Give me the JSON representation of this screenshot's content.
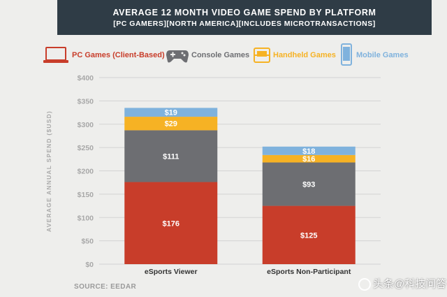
{
  "title": "AVERAGE 12 MONTH VIDEO GAME SPEND BY PLATFORM",
  "subtitle": "[PC GAMERS][NORTH AMERICA][INCLUDES MICROTRANSACTIONS]",
  "legend": [
    {
      "label": "PC Games (Client-Based)",
      "color": "#c83d2a",
      "icon": "laptop-icon"
    },
    {
      "label": "Console Games",
      "color": "#6d6e72",
      "icon": "gamepad-icon"
    },
    {
      "label": "Handheld Games",
      "color": "#f6b224",
      "icon": "handheld-icon"
    },
    {
      "label": "Mobile Games",
      "color": "#7fb2dd",
      "icon": "smartphone-icon"
    }
  ],
  "source": "SOURCE: EEDAR",
  "watermark": "头条@科技问答",
  "chart_data": {
    "type": "bar",
    "stacked": true,
    "categories": [
      "eSports Viewer",
      "eSports Non-Participant"
    ],
    "series": [
      {
        "name": "PC Games (Client-Based)",
        "color": "#c83d2a",
        "values": [
          176,
          125
        ],
        "labels": [
          "$176",
          "$125"
        ]
      },
      {
        "name": "Console Games",
        "color": "#6d6e72",
        "values": [
          111,
          93
        ],
        "labels": [
          "$111",
          "$93"
        ]
      },
      {
        "name": "Handheld Games",
        "color": "#f6b224",
        "values": [
          29,
          16
        ],
        "labels": [
          "$29",
          "$16"
        ]
      },
      {
        "name": "Mobile Games",
        "color": "#7fb2dd",
        "values": [
          19,
          18
        ],
        "labels": [
          "$19",
          "$18"
        ]
      }
    ],
    "ylabel": "AVERAGE ANNUAL SPEND ($USD)",
    "ylim": [
      0,
      400
    ],
    "yticks": [
      "$0",
      "$50",
      "$100",
      "$150",
      "$200",
      "$250",
      "$300",
      "$350",
      "$400"
    ],
    "grid": true,
    "legend_position": "top"
  }
}
